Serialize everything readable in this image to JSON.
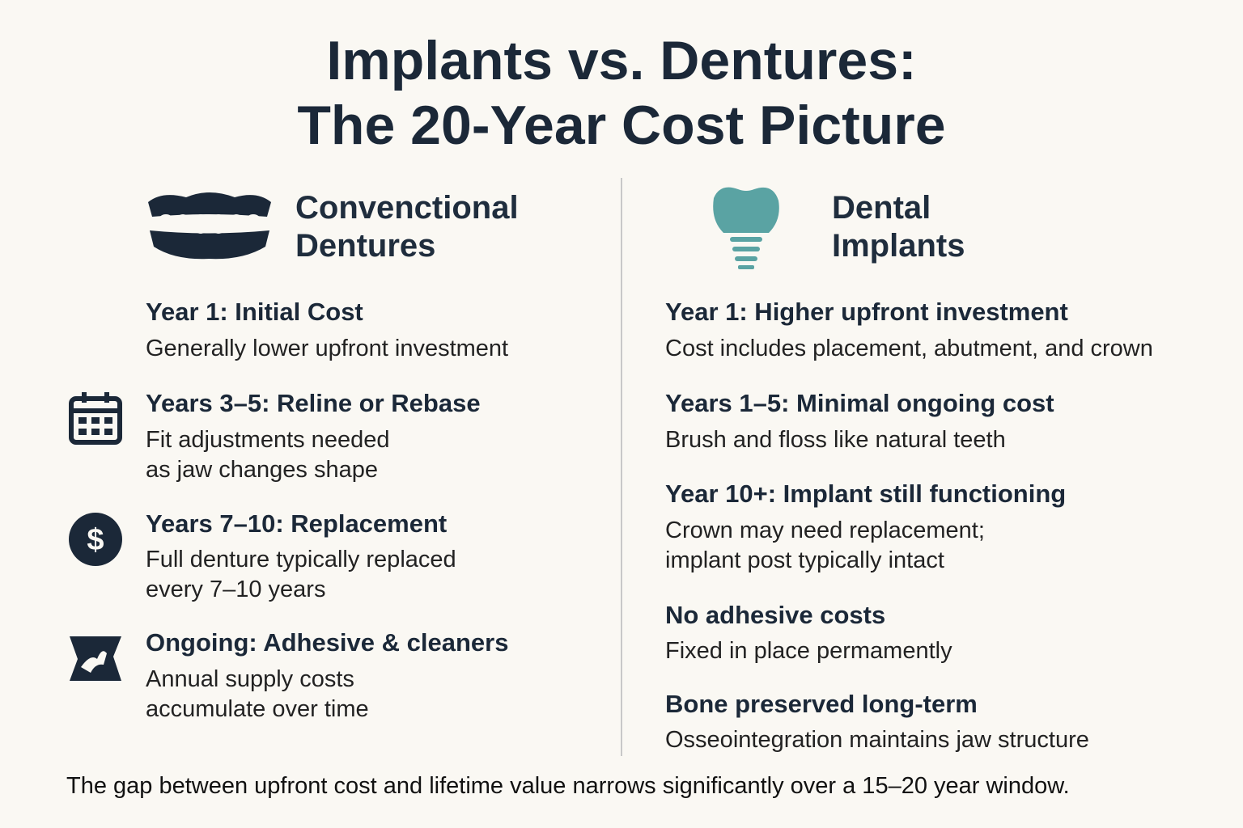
{
  "header": {
    "title": [
      "Implants vs. Dentures:",
      "The 20-Year Cost Picture"
    ]
  },
  "columns": [
    {
      "heading": [
        "Convenctional",
        "Dentures"
      ],
      "items": [
        {
          "title": "Year 1: Initial Cost",
          "lines": [
            "Generally lower upfront investment"
          ]
        },
        {
          "title": "Years 3–5: Reline or Rebase",
          "lines": [
            "Fit adjustments needed",
            "as jaw changes shape"
          ]
        },
        {
          "title": "Years 7–10: Replacement",
          "lines": [
            "Full denture typically replaced",
            "every 7–10 years"
          ]
        },
        {
          "title": "Ongoing: Adhesive & cleaners",
          "lines": [
            "Annual supply costs",
            "accumulate over time"
          ]
        }
      ]
    },
    {
      "heading": [
        "Dental",
        "Implants"
      ],
      "items": [
        {
          "title": "Year 1: Higher upfront investment",
          "lines": [
            "Cost includes placement, abutment, and crown"
          ]
        },
        {
          "title": "Years 1–5: Minimal ongoing cost",
          "lines": [
            "Brush and floss like natural teeth"
          ]
        },
        {
          "title": "Year 10+: Implant still functioning",
          "lines": [
            "Crown may need replacement;",
            "implant post typically intact"
          ]
        },
        {
          "title": "No adhesive costs",
          "lines": [
            "Fixed in place permamently"
          ]
        },
        {
          "title": "Bone preserved long-term",
          "lines": [
            "Osseointegration maintains jaw structure"
          ]
        }
      ]
    }
  ],
  "footer": "The gap between upfront cost and lifetime value narrows significantly over a 15–20 year window."
}
